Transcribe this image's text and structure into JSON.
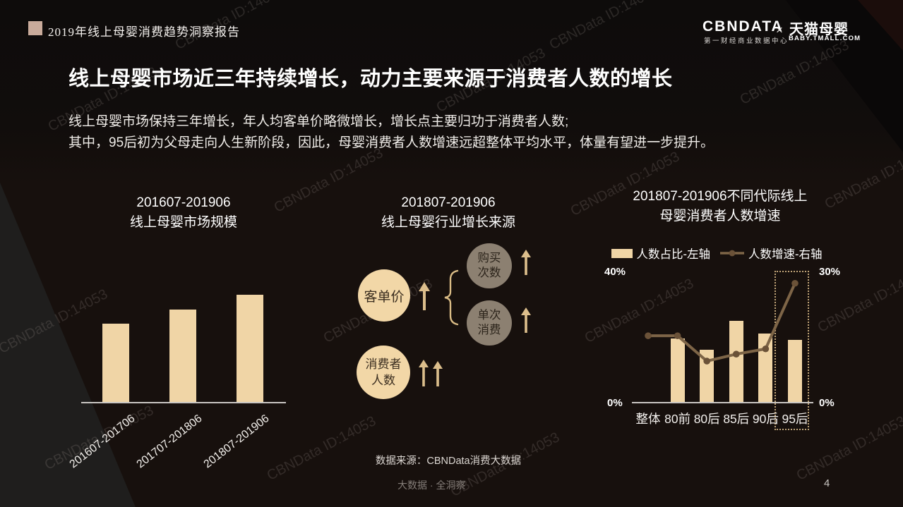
{
  "page": {
    "footer": "大数据 · 全洞察",
    "page_number": "4",
    "watermark": "CBNData ID:14053"
  },
  "header": {
    "report_title": "2019年线上母婴消费趋势洞察报告",
    "logo_cbndata": "CBNDATA",
    "logo_cbndata_sub": "第一财经商业数据中心",
    "logo_separator": "×",
    "logo_tmall": "天猫母婴",
    "logo_tmall_sub": "BABY.TMALL.COM"
  },
  "headline": "线上母婴市场近三年持续增长，动力主要来源于消费者人数的增长",
  "body_line1": "线上母婴市场保持三年增长，年人均客单价略微增长，增长点主要归功于消费者人数;",
  "body_line2": "其中，95后初为父母走向人生新阶段，因此，母婴消费者人数增速远超整体平均水平，体量有望进一步提升。",
  "colors": {
    "accent_tan": "#f0d5a6",
    "circle_gray": "#8c8071",
    "line_brown": "#7e6547",
    "line_dot_brown": "#6b5238",
    "axis_gray": "#c9c6c3",
    "header_square": "#c9ab9b",
    "dash_border": "#bfa377"
  },
  "left_chart": {
    "title_line1": "201607-201906",
    "title_line2": "线上母婴市场规模"
  },
  "middle_diagram": {
    "title_line1": "201807-201906",
    "title_line2": "线上母婴行业增长来源",
    "node_price": "客单价",
    "node_freq_line1": "购买",
    "node_freq_line2": "次数",
    "node_per_line1": "单次",
    "node_per_line2": "消费",
    "node_consumers_line1": "消费者",
    "node_consumers_line2": "人数",
    "source": "数据来源：CBNData消费大数据"
  },
  "right_chart": {
    "title_line1": "201807-201906不同代际线上",
    "title_line2": "母婴消费者人数增速",
    "legend_bar": "人数占比-左轴",
    "legend_line": "人数增速-右轴",
    "left_axis_top": "40%",
    "left_axis_bottom": "0%",
    "right_axis_top": "30%",
    "right_axis_bottom": "0%"
  },
  "chart_data": [
    {
      "type": "bar",
      "title": "201607-201906 线上母婴市场规模",
      "categories": [
        "201607-201706",
        "201707-201806",
        "201807-201906"
      ],
      "values": [
        73,
        86,
        100
      ],
      "values_are_estimates": true,
      "value_scale": "relative height, largest bar = 100 (no numeric labels shown)",
      "xlabel": "",
      "ylabel": "",
      "grid": false
    },
    {
      "type": "bar",
      "title": "201807-201906不同代际线上母婴消费者人数增速",
      "categories": [
        "整体",
        "80前",
        "80后",
        "85后",
        "90后",
        "95后"
      ],
      "series": [
        {
          "name": "人数占比-左轴",
          "type": "bar",
          "axis": "left",
          "values": [
            null,
            19.6,
            16.1,
            24.9,
            21.1,
            19.1
          ]
        },
        {
          "name": "人数增速-右轴",
          "type": "line",
          "axis": "right",
          "values": [
            15.3,
            15.3,
            9.5,
            11.1,
            12.3,
            27.3
          ]
        }
      ],
      "values_are_estimates": true,
      "left_ylim": [
        0,
        40
      ],
      "right_ylim": [
        0,
        30
      ],
      "left_axis_ticks": [
        "40%",
        "0%"
      ],
      "right_axis_ticks": [
        "30%",
        "0%"
      ],
      "legend_position": "top",
      "highlighted_category": "95后",
      "grid": false
    }
  ]
}
